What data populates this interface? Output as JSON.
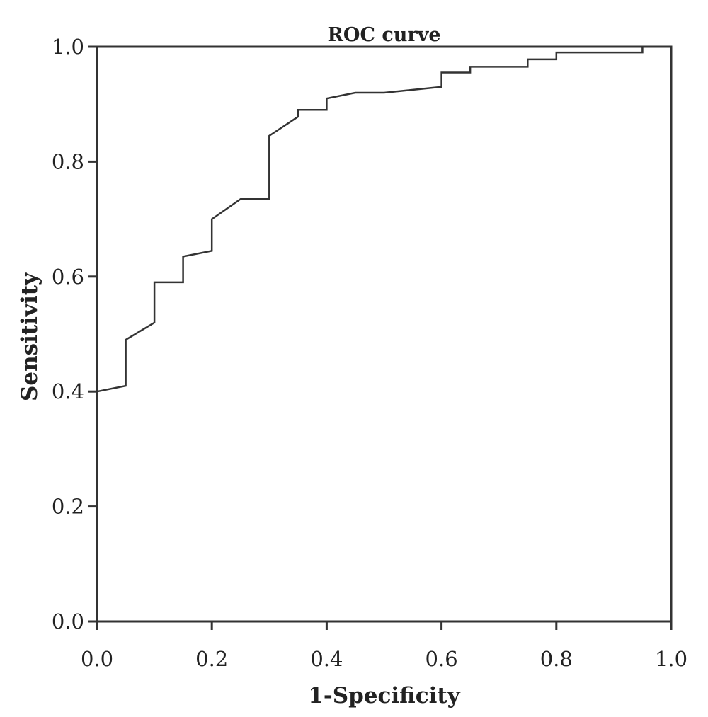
{
  "chart_data": {
    "type": "line",
    "title": "ROC curve",
    "xlabel": "1-Specificity",
    "ylabel": "Sensitivity",
    "xlim": [
      0,
      1
    ],
    "ylim": [
      0,
      1
    ],
    "xticks": [
      "0.0",
      "0.2",
      "0.4",
      "0.6",
      "0.8",
      "1.0"
    ],
    "yticks": [
      "0.0",
      "0.2",
      "0.4",
      "0.6",
      "0.8",
      "1.0"
    ],
    "grid": false,
    "line_color": "#333333",
    "series": [
      {
        "x": [
          0.0,
          0.05,
          0.05,
          0.1,
          0.1,
          0.15,
          0.15,
          0.2,
          0.2,
          0.25,
          0.3,
          0.3,
          0.35,
          0.35,
          0.4,
          0.4,
          0.45,
          0.5,
          0.6,
          0.6,
          0.65,
          0.65,
          0.75,
          0.75,
          0.8,
          0.8,
          0.95,
          0.95,
          1.0
        ],
        "y": [
          0.4,
          0.41,
          0.49,
          0.52,
          0.59,
          0.59,
          0.635,
          0.645,
          0.7,
          0.735,
          0.735,
          0.845,
          0.878,
          0.89,
          0.89,
          0.91,
          0.92,
          0.92,
          0.93,
          0.955,
          0.955,
          0.965,
          0.965,
          0.978,
          0.978,
          0.99,
          0.99,
          1.0,
          1.0
        ]
      }
    ]
  }
}
